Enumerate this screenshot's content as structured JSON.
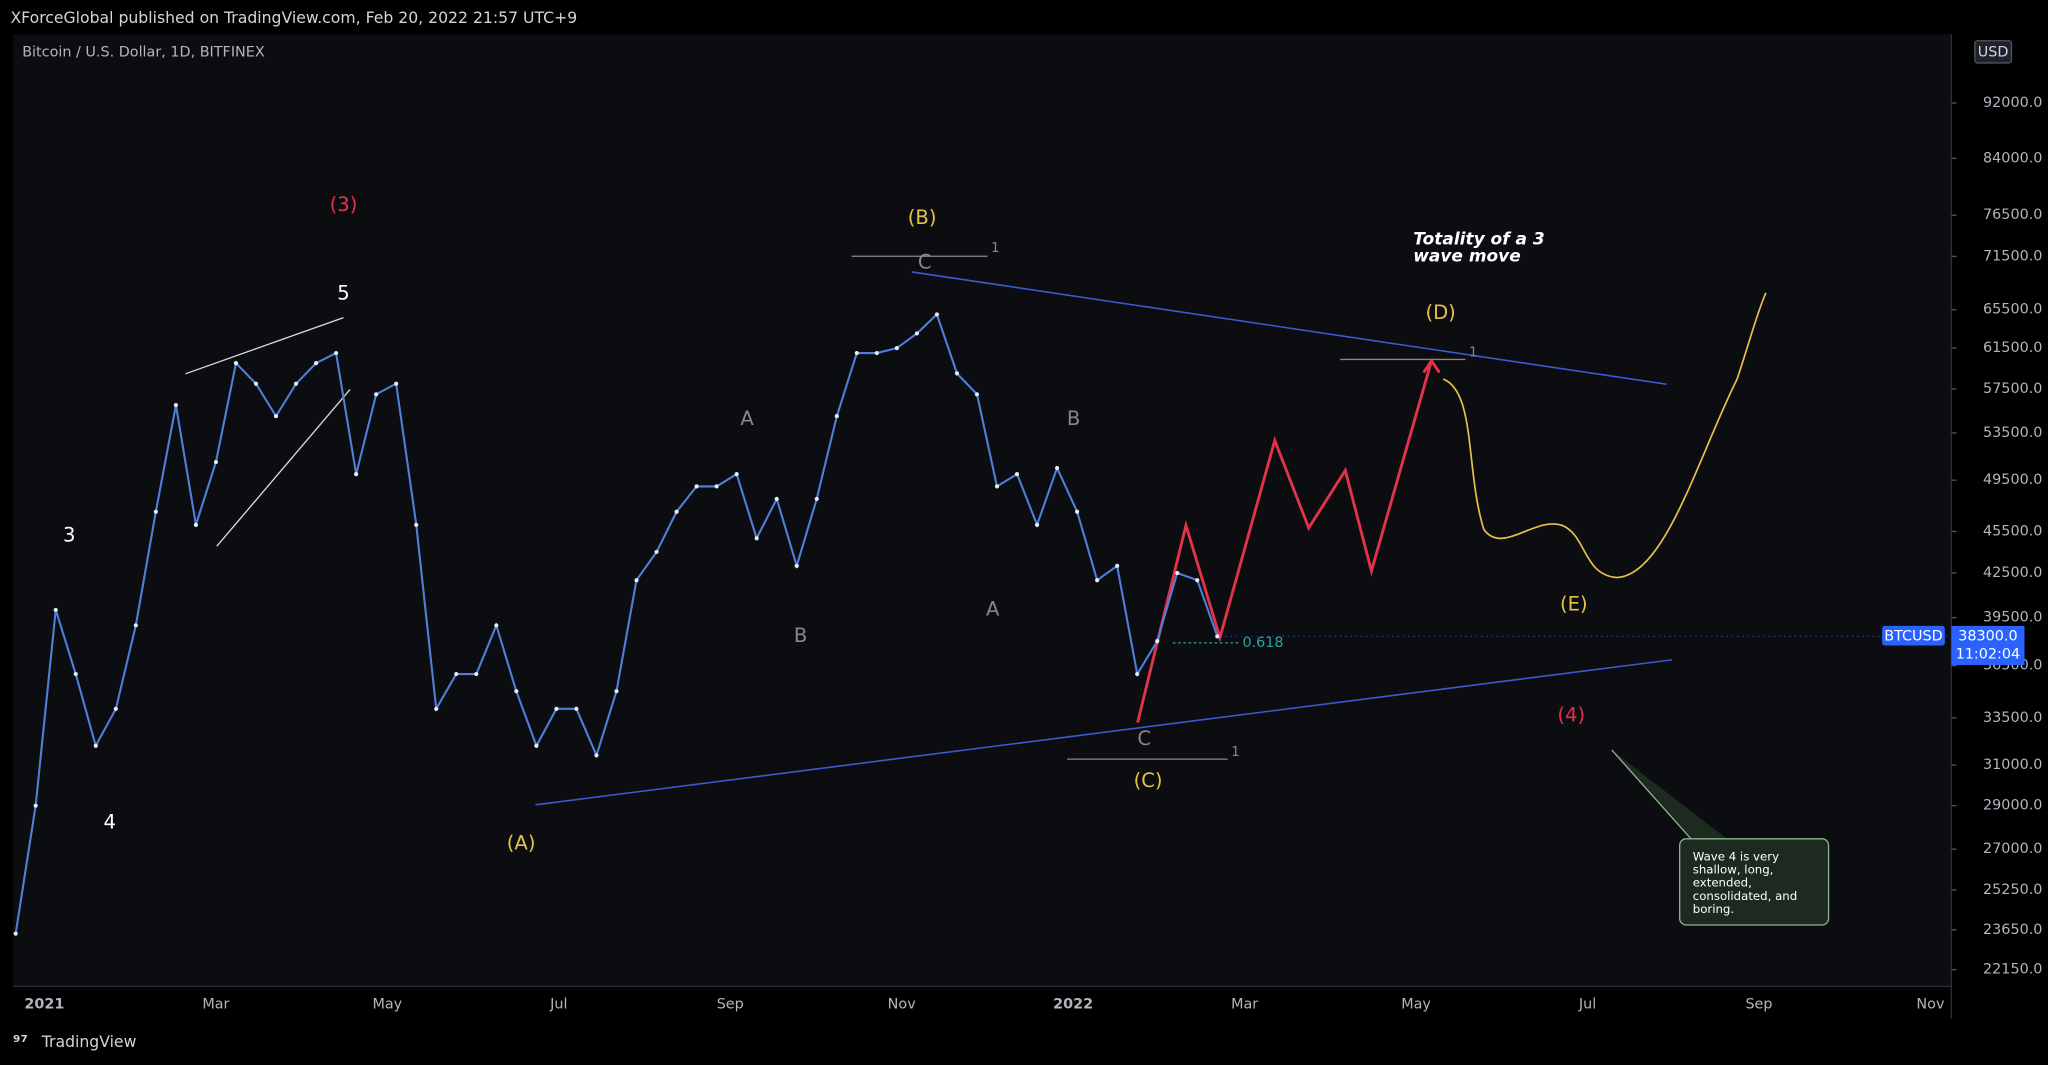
{
  "header": {
    "published": "XForceGlobal published on TradingView.com, Feb 20, 2022 21:57 UTC+9"
  },
  "footer": {
    "brand": "TradingView"
  },
  "chart_data": {
    "type": "line",
    "title": "Bitcoin / U.S. Dollar, 1D, BITFINEX",
    "currency": "USD",
    "symbol": "BTCUSD",
    "last_price": {
      "value": 38300,
      "label": "38300.0"
    },
    "countdown": "11:02:04",
    "log_scale": true,
    "color": "#4f7fd9",
    "ylim": [
      21550,
      103000
    ],
    "yticks": [
      {
        "value": 92000,
        "label": "92000.0"
      },
      {
        "value": 84000,
        "label": "84000.0"
      },
      {
        "value": 76500,
        "label": "76500.0"
      },
      {
        "value": 71500,
        "label": "71500.0"
      },
      {
        "value": 65500,
        "label": "65500.0"
      },
      {
        "value": 61500,
        "label": "61500.0"
      },
      {
        "value": 57500,
        "label": "57500.0"
      },
      {
        "value": 53500,
        "label": "53500.0"
      },
      {
        "value": 49500,
        "label": "49500.0"
      },
      {
        "value": 45500,
        "label": "45500.0"
      },
      {
        "value": 42500,
        "label": "42500.0"
      },
      {
        "value": 39500,
        "label": "39500.0"
      },
      {
        "value": 36500,
        "label": "36500.0"
      },
      {
        "value": 33500,
        "label": "33500.0"
      },
      {
        "value": 31000,
        "label": "31000.0"
      },
      {
        "value": 29000,
        "label": "29000.0"
      },
      {
        "value": 27000,
        "label": "27000.0"
      },
      {
        "value": 25250,
        "label": "25250.0"
      },
      {
        "value": 23650,
        "label": "23650.0"
      },
      {
        "value": 22150,
        "label": "22150.0"
      }
    ],
    "x_labels": [
      "2021",
      "Mar",
      "May",
      "Jul",
      "Sep",
      "Nov",
      "2022",
      "Mar",
      "May",
      "Jul",
      "Sep",
      "Nov"
    ],
    "values": [
      23500,
      29000,
      40000,
      36000,
      32000,
      34000,
      39000,
      47000,
      56000,
      46000,
      51000,
      60000,
      58000,
      55000,
      58000,
      60000,
      61000,
      50000,
      57000,
      58000,
      46000,
      34000,
      36000,
      36000,
      39000,
      35000,
      32000,
      34000,
      34000,
      31500,
      35000,
      42000,
      44000,
      47000,
      49000,
      49000,
      50000,
      45000,
      48000,
      43000,
      48000,
      55000,
      61000,
      61000,
      61500,
      63000,
      65000,
      59000,
      57000,
      49000,
      50000,
      46000,
      50500,
      47000,
      42000,
      43000,
      36000,
      38000,
      42500,
      42000,
      38300
    ],
    "annotations": {
      "w3p": "(3)",
      "w5": "5",
      "w3": "3",
      "w4": "4",
      "wB": "(B)",
      "cTop": "C",
      "aLeft": "A",
      "bLeft": "B",
      "bRight": "B",
      "aRight": "A",
      "cBottom": "C",
      "wC": "(C)",
      "wA": "(A)",
      "wD": "(D)",
      "wE": "(E)",
      "w4p": "(4)",
      "one1": "1",
      "one2": "1",
      "one3": "1",
      "fib": "0.618",
      "totality": [
        "Totality of a 3",
        "wave move"
      ],
      "callout": [
        "Wave 4 is very",
        "shallow, long,",
        "extended,",
        "consolidated, and",
        "boring."
      ]
    }
  }
}
